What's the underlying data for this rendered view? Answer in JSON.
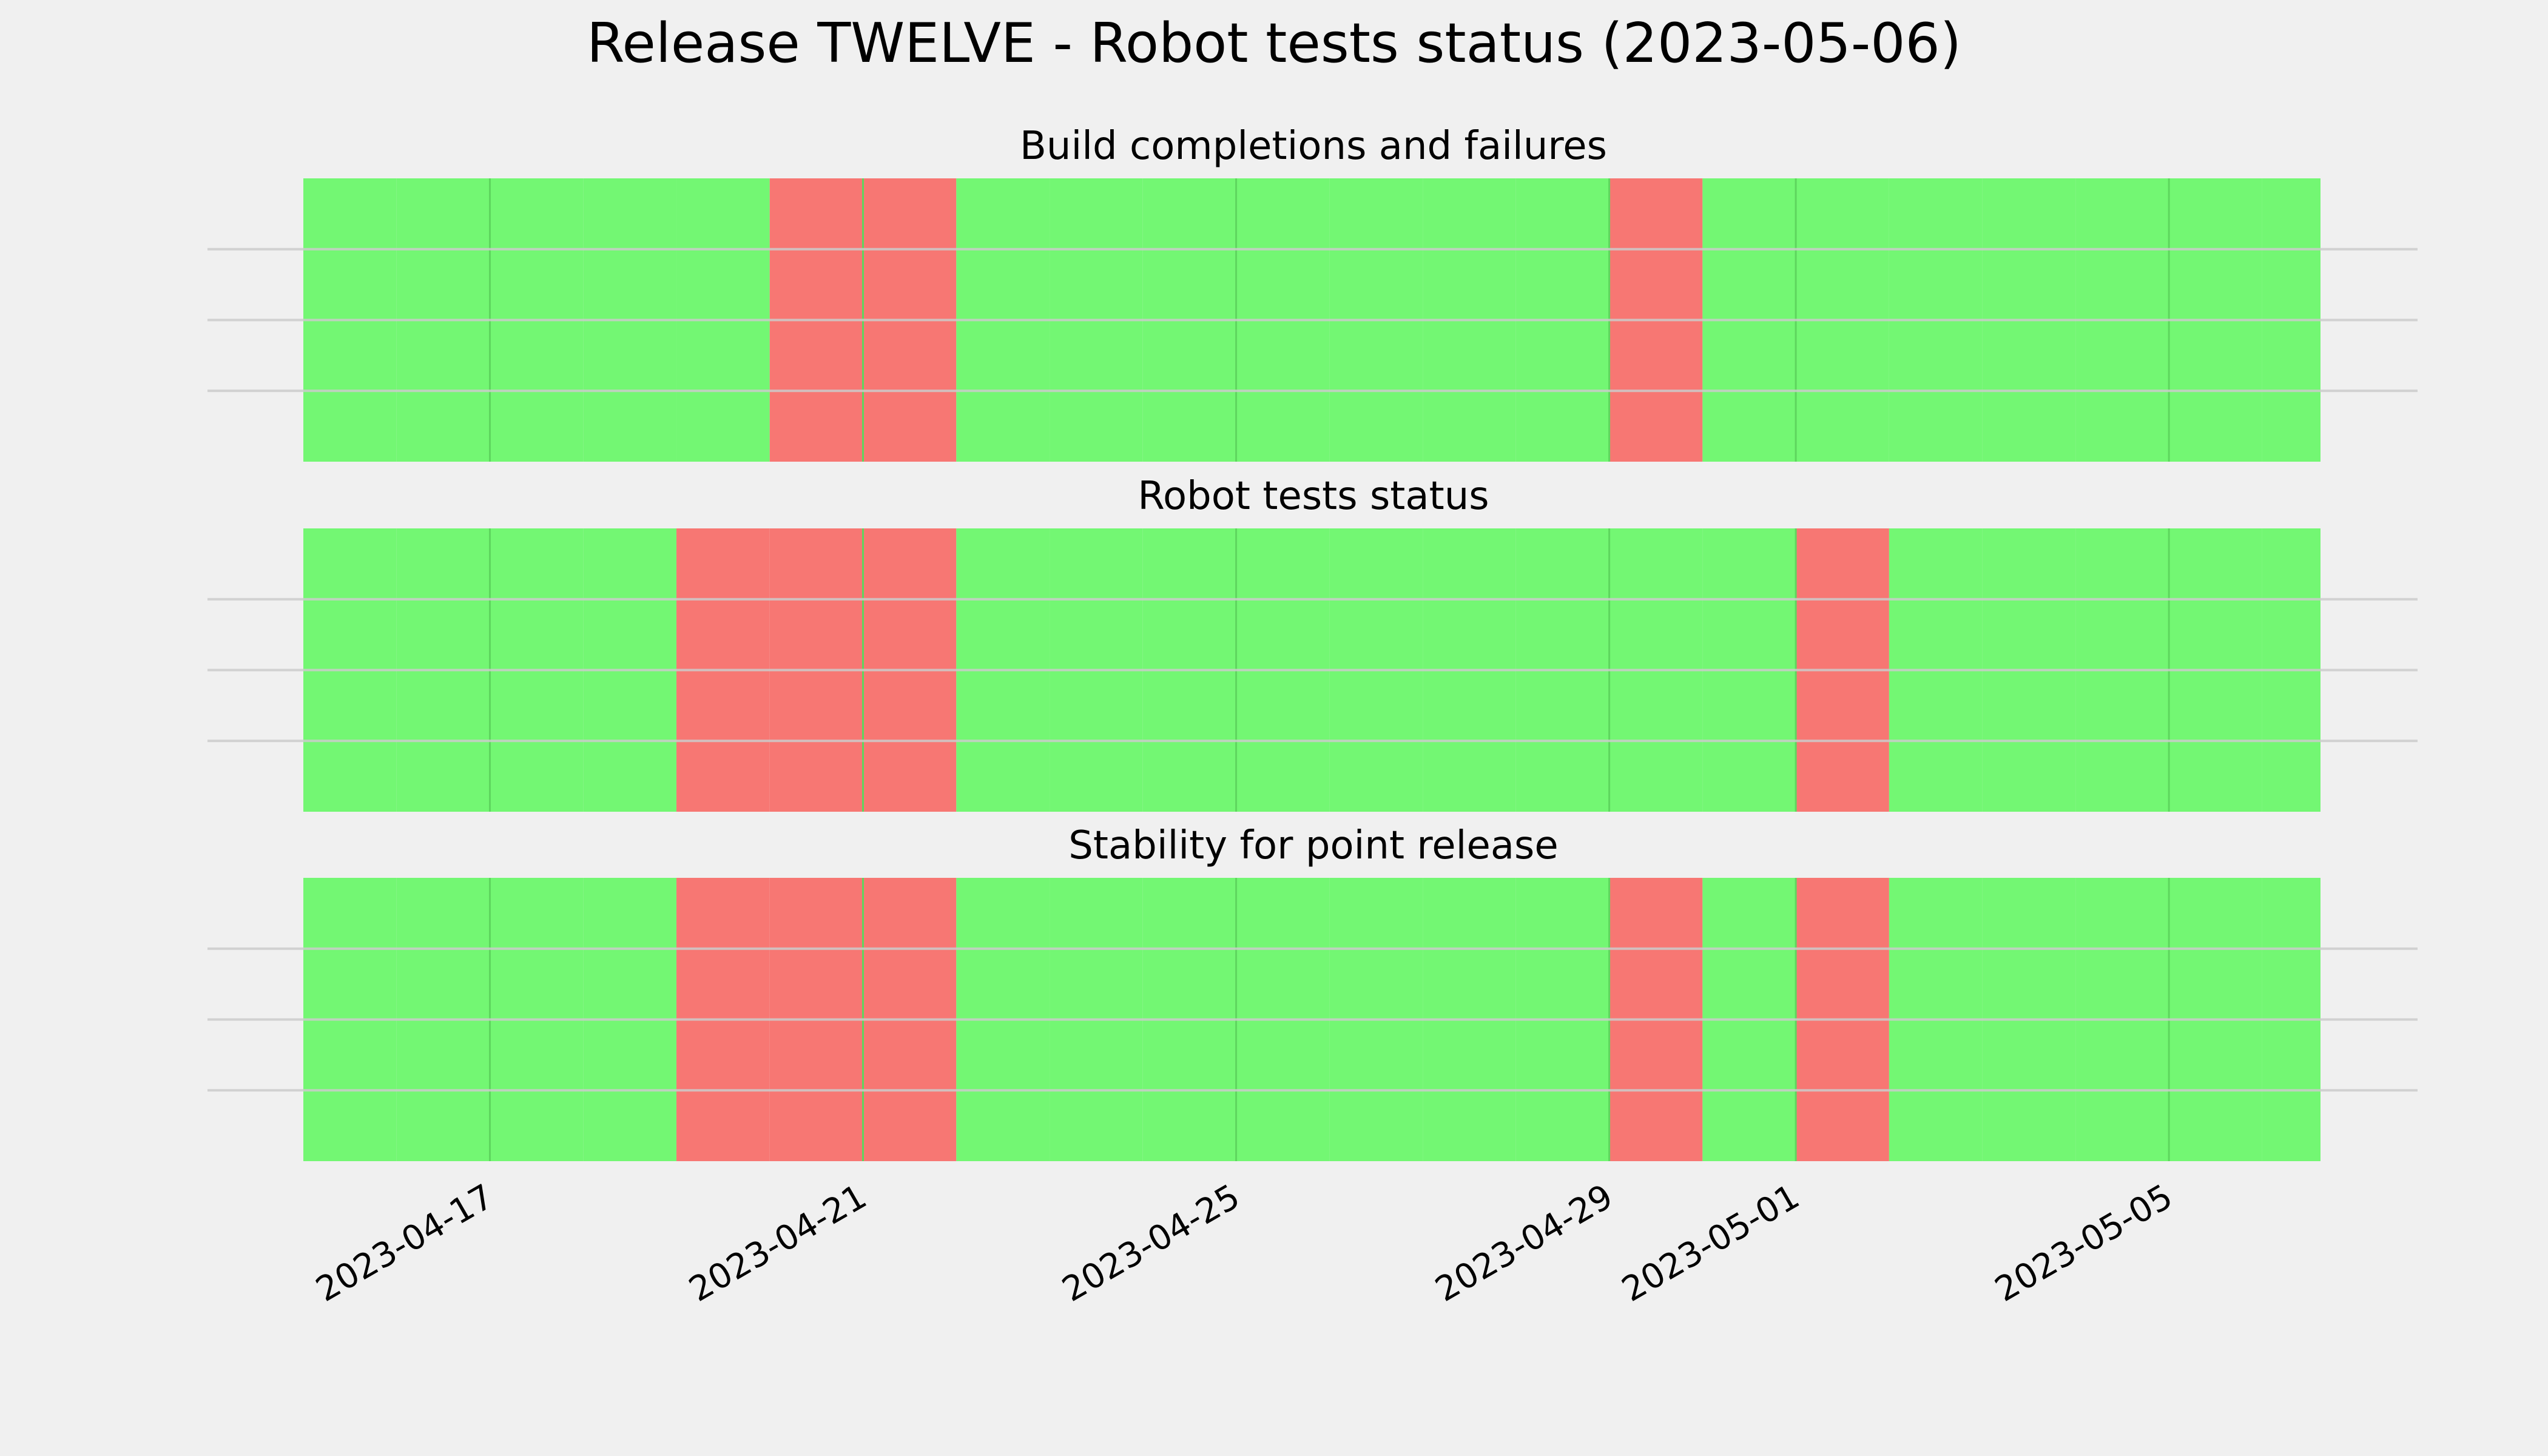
{
  "figure": {
    "title": "Release TWELVE - Robot tests status (2023-05-06)",
    "background": "#f0f0f0"
  },
  "colors": {
    "success": "#73f773",
    "failure": "#f77773",
    "gridline": "#cbcbcb",
    "day_line": "#5ed65e"
  },
  "chart_data": [
    {
      "type": "bar",
      "title": "Build completions and failures",
      "xlabel": "",
      "ylabel": "",
      "grid": true,
      "legend": "none",
      "x_type": "date",
      "xlim": [
        "2023-04-15",
        "2023-05-06"
      ],
      "x_ticks": [
        "2023-04-17",
        "2023-04-21",
        "2023-04-25",
        "2023-04-29",
        "2023-05-01",
        "2023-05-05"
      ],
      "days": [
        {
          "start": "2023-04-15",
          "end": "2023-04-16",
          "status": "success"
        },
        {
          "start": "2023-04-16",
          "end": "2023-04-17",
          "status": "success"
        },
        {
          "start": "2023-04-17",
          "end": "2023-04-18",
          "status": "success"
        },
        {
          "start": "2023-04-18",
          "end": "2023-04-19",
          "status": "success"
        },
        {
          "start": "2023-04-19",
          "end": "2023-04-20",
          "status": "success"
        },
        {
          "start": "2023-04-20",
          "end": "2023-04-21",
          "status": "failure"
        },
        {
          "start": "2023-04-21",
          "end": "2023-04-22",
          "status": "failure"
        },
        {
          "start": "2023-04-22",
          "end": "2023-04-23",
          "status": "success"
        },
        {
          "start": "2023-04-23",
          "end": "2023-04-24",
          "status": "success"
        },
        {
          "start": "2023-04-24",
          "end": "2023-04-25",
          "status": "success"
        },
        {
          "start": "2023-04-25",
          "end": "2023-04-26",
          "status": "success"
        },
        {
          "start": "2023-04-26",
          "end": "2023-04-27",
          "status": "success"
        },
        {
          "start": "2023-04-27",
          "end": "2023-04-28",
          "status": "success"
        },
        {
          "start": "2023-04-28",
          "end": "2023-04-29",
          "status": "success"
        },
        {
          "start": "2023-04-29",
          "end": "2023-04-30",
          "status": "failure"
        },
        {
          "start": "2023-04-30",
          "end": "2023-05-01",
          "status": "success"
        },
        {
          "start": "2023-05-01",
          "end": "2023-05-02",
          "status": "success"
        },
        {
          "start": "2023-05-02",
          "end": "2023-05-03",
          "status": "success"
        },
        {
          "start": "2023-05-03",
          "end": "2023-05-04",
          "status": "success"
        },
        {
          "start": "2023-05-04",
          "end": "2023-05-05",
          "status": "success"
        },
        {
          "start": "2023-05-05",
          "end": "2023-05-06",
          "status": "success"
        },
        {
          "start": "2023-05-06",
          "end": "2023-05-06T15:00",
          "status": "success"
        }
      ]
    },
    {
      "type": "bar",
      "title": "Robot tests status",
      "xlabel": "",
      "ylabel": "",
      "grid": true,
      "legend": "none",
      "x_type": "date",
      "xlim": [
        "2023-04-15",
        "2023-05-06"
      ],
      "x_ticks": [
        "2023-04-17",
        "2023-04-21",
        "2023-04-25",
        "2023-04-29",
        "2023-05-01",
        "2023-05-05"
      ],
      "days": [
        {
          "start": "2023-04-15",
          "end": "2023-04-16",
          "status": "success"
        },
        {
          "start": "2023-04-16",
          "end": "2023-04-17",
          "status": "success"
        },
        {
          "start": "2023-04-17",
          "end": "2023-04-18",
          "status": "success"
        },
        {
          "start": "2023-04-18",
          "end": "2023-04-19",
          "status": "success"
        },
        {
          "start": "2023-04-19",
          "end": "2023-04-20",
          "status": "failure"
        },
        {
          "start": "2023-04-20",
          "end": "2023-04-21",
          "status": "failure"
        },
        {
          "start": "2023-04-21",
          "end": "2023-04-22",
          "status": "failure"
        },
        {
          "start": "2023-04-22",
          "end": "2023-04-23",
          "status": "success"
        },
        {
          "start": "2023-04-23",
          "end": "2023-04-24",
          "status": "success"
        },
        {
          "start": "2023-04-24",
          "end": "2023-04-25",
          "status": "success"
        },
        {
          "start": "2023-04-25",
          "end": "2023-04-26",
          "status": "success"
        },
        {
          "start": "2023-04-26",
          "end": "2023-04-27",
          "status": "success"
        },
        {
          "start": "2023-04-27",
          "end": "2023-04-28",
          "status": "success"
        },
        {
          "start": "2023-04-28",
          "end": "2023-04-29",
          "status": "success"
        },
        {
          "start": "2023-04-29",
          "end": "2023-04-30",
          "status": "success"
        },
        {
          "start": "2023-04-30",
          "end": "2023-05-01",
          "status": "success"
        },
        {
          "start": "2023-05-01",
          "end": "2023-05-02",
          "status": "failure"
        },
        {
          "start": "2023-05-02",
          "end": "2023-05-03",
          "status": "success"
        },
        {
          "start": "2023-05-03",
          "end": "2023-05-04",
          "status": "success"
        },
        {
          "start": "2023-05-04",
          "end": "2023-05-05",
          "status": "success"
        },
        {
          "start": "2023-05-05",
          "end": "2023-05-06",
          "status": "success"
        },
        {
          "start": "2023-05-06",
          "end": "2023-05-06T15:00",
          "status": "success"
        }
      ]
    },
    {
      "type": "bar",
      "title": "Stability for point release",
      "xlabel": "",
      "ylabel": "",
      "grid": true,
      "legend": "none",
      "x_type": "date",
      "xlim": [
        "2023-04-15",
        "2023-05-06"
      ],
      "x_ticks": [
        "2023-04-17",
        "2023-04-21",
        "2023-04-25",
        "2023-04-29",
        "2023-05-01",
        "2023-05-05"
      ],
      "tick_labels_visible": true,
      "days": [
        {
          "start": "2023-04-15",
          "end": "2023-04-16",
          "status": "success"
        },
        {
          "start": "2023-04-16",
          "end": "2023-04-17",
          "status": "success"
        },
        {
          "start": "2023-04-17",
          "end": "2023-04-18",
          "status": "success"
        },
        {
          "start": "2023-04-18",
          "end": "2023-04-19",
          "status": "success"
        },
        {
          "start": "2023-04-19",
          "end": "2023-04-20",
          "status": "failure"
        },
        {
          "start": "2023-04-20",
          "end": "2023-04-21",
          "status": "failure"
        },
        {
          "start": "2023-04-21",
          "end": "2023-04-22",
          "status": "failure"
        },
        {
          "start": "2023-04-22",
          "end": "2023-04-23",
          "status": "success"
        },
        {
          "start": "2023-04-23",
          "end": "2023-04-24",
          "status": "success"
        },
        {
          "start": "2023-04-24",
          "end": "2023-04-25",
          "status": "success"
        },
        {
          "start": "2023-04-25",
          "end": "2023-04-26",
          "status": "success"
        },
        {
          "start": "2023-04-26",
          "end": "2023-04-27",
          "status": "success"
        },
        {
          "start": "2023-04-27",
          "end": "2023-04-28",
          "status": "success"
        },
        {
          "start": "2023-04-28",
          "end": "2023-04-29",
          "status": "success"
        },
        {
          "start": "2023-04-29",
          "end": "2023-04-30",
          "status": "failure"
        },
        {
          "start": "2023-04-30",
          "end": "2023-05-01",
          "status": "success"
        },
        {
          "start": "2023-05-01",
          "end": "2023-05-02",
          "status": "failure"
        },
        {
          "start": "2023-05-02",
          "end": "2023-05-03",
          "status": "success"
        },
        {
          "start": "2023-05-03",
          "end": "2023-05-04",
          "status": "success"
        },
        {
          "start": "2023-05-04",
          "end": "2023-05-05",
          "status": "success"
        },
        {
          "start": "2023-05-05",
          "end": "2023-05-06",
          "status": "success"
        },
        {
          "start": "2023-05-06",
          "end": "2023-05-06T15:00",
          "status": "success"
        }
      ]
    }
  ]
}
